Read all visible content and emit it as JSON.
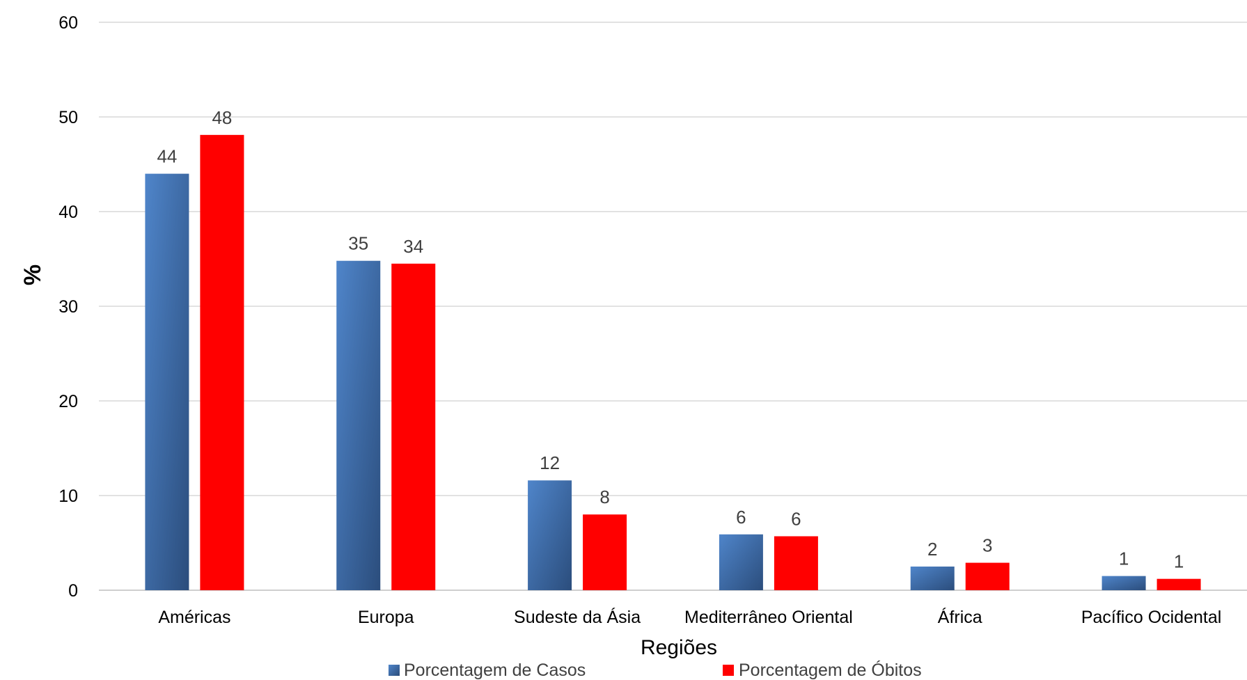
{
  "chart_data": {
    "type": "bar",
    "title": "",
    "xlabel": "Regiões",
    "ylabel": "%",
    "ylim": [
      0,
      60
    ],
    "yticks": [
      0,
      10,
      20,
      30,
      40,
      50,
      60
    ],
    "grid": true,
    "legend_position": "bottom",
    "categories": [
      "Américas",
      "Europa",
      "Sudeste da Ásia",
      "Mediterrâneo Oriental",
      "África",
      "Pacífico Ocidental"
    ],
    "series": [
      {
        "name": "Porcentagem de Casos",
        "color": "#3E6FB4",
        "values": [
          44,
          34.8,
          11.6,
          5.9,
          2.5,
          1.5
        ],
        "labels": [
          "44",
          "35",
          "12",
          "6",
          "2",
          "1"
        ]
      },
      {
        "name": "Porcentagem de Óbitos",
        "color": "#FF0000",
        "values": [
          48.1,
          34.5,
          8,
          5.7,
          2.9,
          1.2
        ],
        "labels": [
          "48",
          "34",
          "8",
          "6",
          "3",
          "1"
        ]
      }
    ]
  }
}
